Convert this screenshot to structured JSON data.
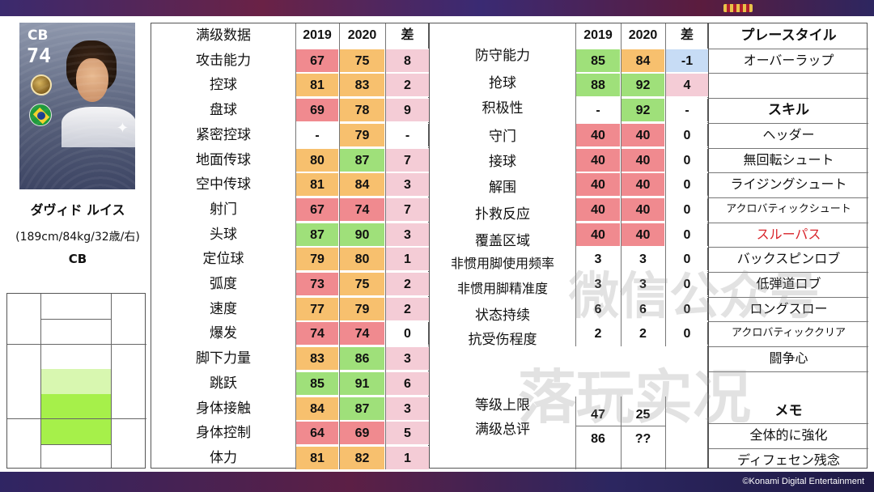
{
  "copyright": "©Konami Digital Entertainment",
  "player": {
    "card_position": "CB",
    "card_rating": "74",
    "name": "ダヴィド ルイス",
    "info": "(189cm/84kg/32歳/右)",
    "position": "CB"
  },
  "colors": {
    "red": "#f08a8f",
    "orange": "#f7c06e",
    "green": "#9fe07a",
    "pink": "#f4ccd6",
    "blue": "#c7dcf5",
    "zone_light": "#d8f7b0",
    "zone_bright": "#a6f04a"
  },
  "left_table": {
    "headers": {
      "label": "满级数据",
      "y2019": "2019",
      "y2020": "2020",
      "diff": "差"
    },
    "rows": [
      {
        "label": "攻击能力",
        "v2019": "67",
        "c2019": "red",
        "v2020": "75",
        "c2020": "orange",
        "diff": "8",
        "cdiff": "pink"
      },
      {
        "label": "控球",
        "v2019": "81",
        "c2019": "orange",
        "v2020": "83",
        "c2020": "orange",
        "diff": "2",
        "cdiff": "pink"
      },
      {
        "label": "盘球",
        "v2019": "69",
        "c2019": "red",
        "v2020": "78",
        "c2020": "orange",
        "diff": "9",
        "cdiff": "pink"
      },
      {
        "label": "紧密控球",
        "v2019": "-",
        "c2019": "none",
        "v2020": "79",
        "c2020": "orange",
        "diff": "-",
        "cdiff": "none"
      },
      {
        "label": "地面传球",
        "v2019": "80",
        "c2019": "orange",
        "v2020": "87",
        "c2020": "green",
        "diff": "7",
        "cdiff": "pink"
      },
      {
        "label": "空中传球",
        "v2019": "81",
        "c2019": "orange",
        "v2020": "84",
        "c2020": "orange",
        "diff": "3",
        "cdiff": "pink"
      },
      {
        "label": "射门",
        "v2019": "67",
        "c2019": "red",
        "v2020": "74",
        "c2020": "red",
        "diff": "7",
        "cdiff": "pink"
      },
      {
        "label": "头球",
        "v2019": "87",
        "c2019": "green",
        "v2020": "90",
        "c2020": "green",
        "diff": "3",
        "cdiff": "pink"
      },
      {
        "label": "定位球",
        "v2019": "79",
        "c2019": "orange",
        "v2020": "80",
        "c2020": "orange",
        "diff": "1",
        "cdiff": "pink"
      },
      {
        "label": "弧度",
        "v2019": "73",
        "c2019": "red",
        "v2020": "75",
        "c2020": "orange",
        "diff": "2",
        "cdiff": "pink"
      },
      {
        "label": "速度",
        "v2019": "77",
        "c2019": "orange",
        "v2020": "79",
        "c2020": "orange",
        "diff": "2",
        "cdiff": "pink"
      },
      {
        "label": "爆发",
        "v2019": "74",
        "c2019": "red",
        "v2020": "74",
        "c2020": "red",
        "diff": "0",
        "cdiff": "none"
      },
      {
        "label": "脚下力量",
        "v2019": "83",
        "c2019": "orange",
        "v2020": "86",
        "c2020": "green",
        "diff": "3",
        "cdiff": "pink"
      },
      {
        "label": "跳跃",
        "v2019": "85",
        "c2019": "green",
        "v2020": "91",
        "c2020": "green",
        "diff": "6",
        "cdiff": "pink"
      },
      {
        "label": "身体接触",
        "v2019": "84",
        "c2019": "orange",
        "v2020": "87",
        "c2020": "green",
        "diff": "3",
        "cdiff": "pink"
      },
      {
        "label": "身体控制",
        "v2019": "64",
        "c2019": "red",
        "v2020": "69",
        "c2020": "red",
        "diff": "5",
        "cdiff": "pink"
      },
      {
        "label": "体力",
        "v2019": "81",
        "c2019": "orange",
        "v2020": "82",
        "c2020": "orange",
        "diff": "1",
        "cdiff": "pink"
      }
    ]
  },
  "right_table": {
    "headers": {
      "y2019": "2019",
      "y2020": "2020",
      "diff": "差"
    },
    "rows": [
      {
        "label": "防守能力",
        "v2019": "85",
        "c2019": "green",
        "v2020": "84",
        "c2020": "orange",
        "diff": "-1",
        "cdiff": "blue"
      },
      {
        "label": "抢球",
        "v2019": "88",
        "c2019": "green",
        "v2020": "92",
        "c2020": "green",
        "diff": "4",
        "cdiff": "pink"
      },
      {
        "label": "积极性",
        "v2019": "-",
        "c2019": "none",
        "v2020": "92",
        "c2020": "green",
        "diff": "-",
        "cdiff": "none"
      },
      {
        "label": "守门",
        "v2019": "40",
        "c2019": "red",
        "v2020": "40",
        "c2020": "red",
        "diff": "0",
        "cdiff": "none"
      },
      {
        "label": "接球",
        "v2019": "40",
        "c2019": "red",
        "v2020": "40",
        "c2020": "red",
        "diff": "0",
        "cdiff": "none"
      },
      {
        "label": "解围",
        "v2019": "40",
        "c2019": "red",
        "v2020": "40",
        "c2020": "red",
        "diff": "0",
        "cdiff": "none"
      },
      {
        "label": "扑救反应",
        "v2019": "40",
        "c2019": "red",
        "v2020": "40",
        "c2020": "red",
        "diff": "0",
        "cdiff": "none"
      },
      {
        "label": "覆盖区域",
        "v2019": "40",
        "c2019": "red",
        "v2020": "40",
        "c2020": "red",
        "diff": "0",
        "cdiff": "none"
      },
      {
        "label": "非惯用脚使用频率",
        "v2019": "3",
        "c2019": "none",
        "v2020": "3",
        "c2020": "none",
        "diff": "0",
        "cdiff": "none"
      },
      {
        "label": "非惯用脚精准度",
        "v2019": "3",
        "c2019": "none",
        "v2020": "3",
        "c2020": "none",
        "diff": "0",
        "cdiff": "none"
      },
      {
        "label": "状态持续",
        "v2019": "6",
        "c2019": "none",
        "v2020": "6",
        "c2020": "none",
        "diff": "0",
        "cdiff": "none"
      },
      {
        "label": "抗受伤程度",
        "v2019": "2",
        "c2019": "none",
        "v2020": "2",
        "c2020": "none",
        "diff": "0",
        "cdiff": "none"
      }
    ],
    "extra": [
      {
        "label": "等级上限",
        "v2019": "47",
        "v2020": "25"
      },
      {
        "label": "满级总评",
        "v2019": "86",
        "v2020": "??"
      }
    ]
  },
  "jp_column": {
    "playstyle_header": "プレースタイル",
    "playstyle": "オーバーラップ",
    "skills_header": "スキル",
    "skills": [
      "ヘッダー",
      "無回転シュート",
      "ライジングシュート",
      "アクロバティックシュート",
      "スルーパス",
      "バックスピンロブ",
      "低弾道ロブ",
      "ロングスロー",
      "アクロバティッククリア",
      "闘争心"
    ],
    "memo_header": "メモ",
    "memos": [
      "全体的に強化",
      "ディフェセン残念"
    ]
  },
  "watermark": {
    "line1": "微信公众号",
    "line2": "落玩实况"
  }
}
